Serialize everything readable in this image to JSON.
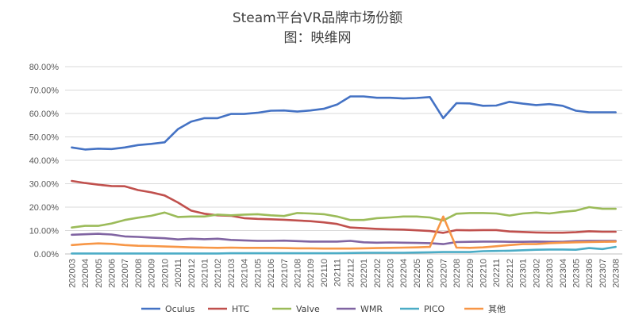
{
  "chart_data": {
    "type": "line",
    "title": "Steam平台VR品牌市场份额",
    "subtitle": "图：映维网",
    "y_ticks": [
      "0.00%",
      "10.00%",
      "20.00%",
      "30.00%",
      "40.00%",
      "50.00%",
      "60.00%",
      "70.00%",
      "80.00%"
    ],
    "ylim": [
      0,
      80
    ],
    "grid": true,
    "legend_position": "bottom",
    "categories": [
      "202003",
      "202004",
      "202005",
      "202006",
      "202007",
      "202008",
      "202009",
      "202010",
      "202011",
      "202012",
      "202101",
      "202102",
      "202103",
      "202104",
      "202105",
      "202106",
      "202107",
      "202108",
      "202109",
      "202110",
      "202111",
      "202112",
      "202201",
      "202202",
      "202203",
      "202204",
      "202205",
      "202206",
      "202207",
      "202208",
      "202209",
      "202210",
      "202211",
      "202212",
      "202301",
      "202302",
      "202303",
      "202304",
      "202305",
      "202306",
      "202307",
      "202308"
    ],
    "series": [
      {
        "name": "Oculus",
        "color": "#4472c4",
        "values": [
          45.5,
          44.6,
          45.0,
          44.8,
          45.5,
          46.5,
          47.0,
          47.7,
          53.3,
          56.5,
          58.0,
          58.0,
          59.8,
          59.8,
          60.3,
          61.2,
          61.3,
          60.8,
          61.3,
          62.0,
          63.8,
          67.3,
          67.3,
          66.7,
          66.7,
          66.4,
          66.6,
          67.0,
          58.0,
          64.4,
          64.3,
          63.3,
          63.4,
          65.0,
          64.2,
          63.6,
          64.0,
          63.3,
          61.2,
          60.5,
          60.5,
          60.5
        ]
      },
      {
        "name": "HTC",
        "color": "#c0504d",
        "values": [
          31.2,
          30.3,
          29.6,
          29.0,
          28.9,
          27.3,
          26.3,
          25.0,
          22.0,
          18.5,
          17.2,
          16.5,
          16.3,
          15.3,
          15.0,
          14.8,
          14.6,
          14.3,
          14.0,
          13.5,
          12.8,
          11.3,
          11.0,
          10.7,
          10.5,
          10.4,
          10.1,
          9.8,
          9.0,
          10.2,
          10.1,
          10.2,
          10.2,
          9.6,
          9.4,
          9.2,
          9.1,
          9.1,
          9.3,
          9.7,
          9.5,
          9.5
        ]
      },
      {
        "name": "Valve",
        "color": "#9bbb59",
        "values": [
          11.3,
          12.0,
          12.0,
          13.0,
          14.5,
          15.5,
          16.3,
          17.7,
          15.8,
          16.0,
          16.0,
          16.8,
          16.5,
          16.8,
          17.0,
          16.5,
          16.2,
          17.5,
          17.3,
          17.0,
          16.0,
          14.5,
          14.5,
          15.3,
          15.6,
          16.0,
          16.0,
          15.6,
          14.3,
          17.2,
          17.5,
          17.5,
          17.3,
          16.4,
          17.3,
          17.7,
          17.3,
          18.0,
          18.5,
          20.0,
          19.3,
          19.3
        ]
      },
      {
        "name": "WMR",
        "color": "#8064a2",
        "values": [
          8.2,
          8.4,
          8.6,
          8.3,
          7.5,
          7.3,
          7.0,
          6.7,
          6.2,
          6.5,
          6.3,
          6.5,
          6.0,
          5.8,
          5.6,
          5.6,
          5.7,
          5.5,
          5.3,
          5.3,
          5.3,
          5.6,
          5.0,
          4.8,
          4.9,
          4.8,
          4.7,
          4.6,
          4.2,
          5.1,
          5.2,
          5.3,
          5.3,
          5.2,
          5.2,
          5.3,
          5.2,
          5.2,
          5.5,
          5.6,
          5.6,
          5.6
        ]
      },
      {
        "name": "PICO",
        "color": "#4bacc6",
        "values": [
          0.2,
          0.2,
          0.2,
          0.2,
          0.2,
          0.2,
          0.2,
          0.2,
          0.2,
          0.2,
          0.2,
          0.2,
          0.3,
          0.3,
          0.3,
          0.3,
          0.3,
          0.3,
          0.3,
          0.3,
          0.3,
          0.4,
          0.5,
          0.5,
          0.5,
          0.5,
          0.6,
          0.7,
          0.8,
          0.8,
          0.8,
          1.2,
          1.3,
          1.4,
          1.6,
          1.8,
          1.9,
          1.9,
          1.8,
          2.5,
          2.1,
          3.0
        ]
      },
      {
        "name": "其他",
        "color": "#f79646",
        "values": [
          3.8,
          4.2,
          4.5,
          4.3,
          3.8,
          3.5,
          3.4,
          3.2,
          3.0,
          2.8,
          2.7,
          2.6,
          2.7,
          2.6,
          2.6,
          2.6,
          2.5,
          2.4,
          2.4,
          2.3,
          2.3,
          2.3,
          2.4,
          2.5,
          2.6,
          2.7,
          2.8,
          3.0,
          16.0,
          2.7,
          2.6,
          2.8,
          3.3,
          3.8,
          4.2,
          4.2,
          4.6,
          4.8,
          5.0,
          5.1,
          5.2,
          5.3
        ]
      }
    ]
  }
}
